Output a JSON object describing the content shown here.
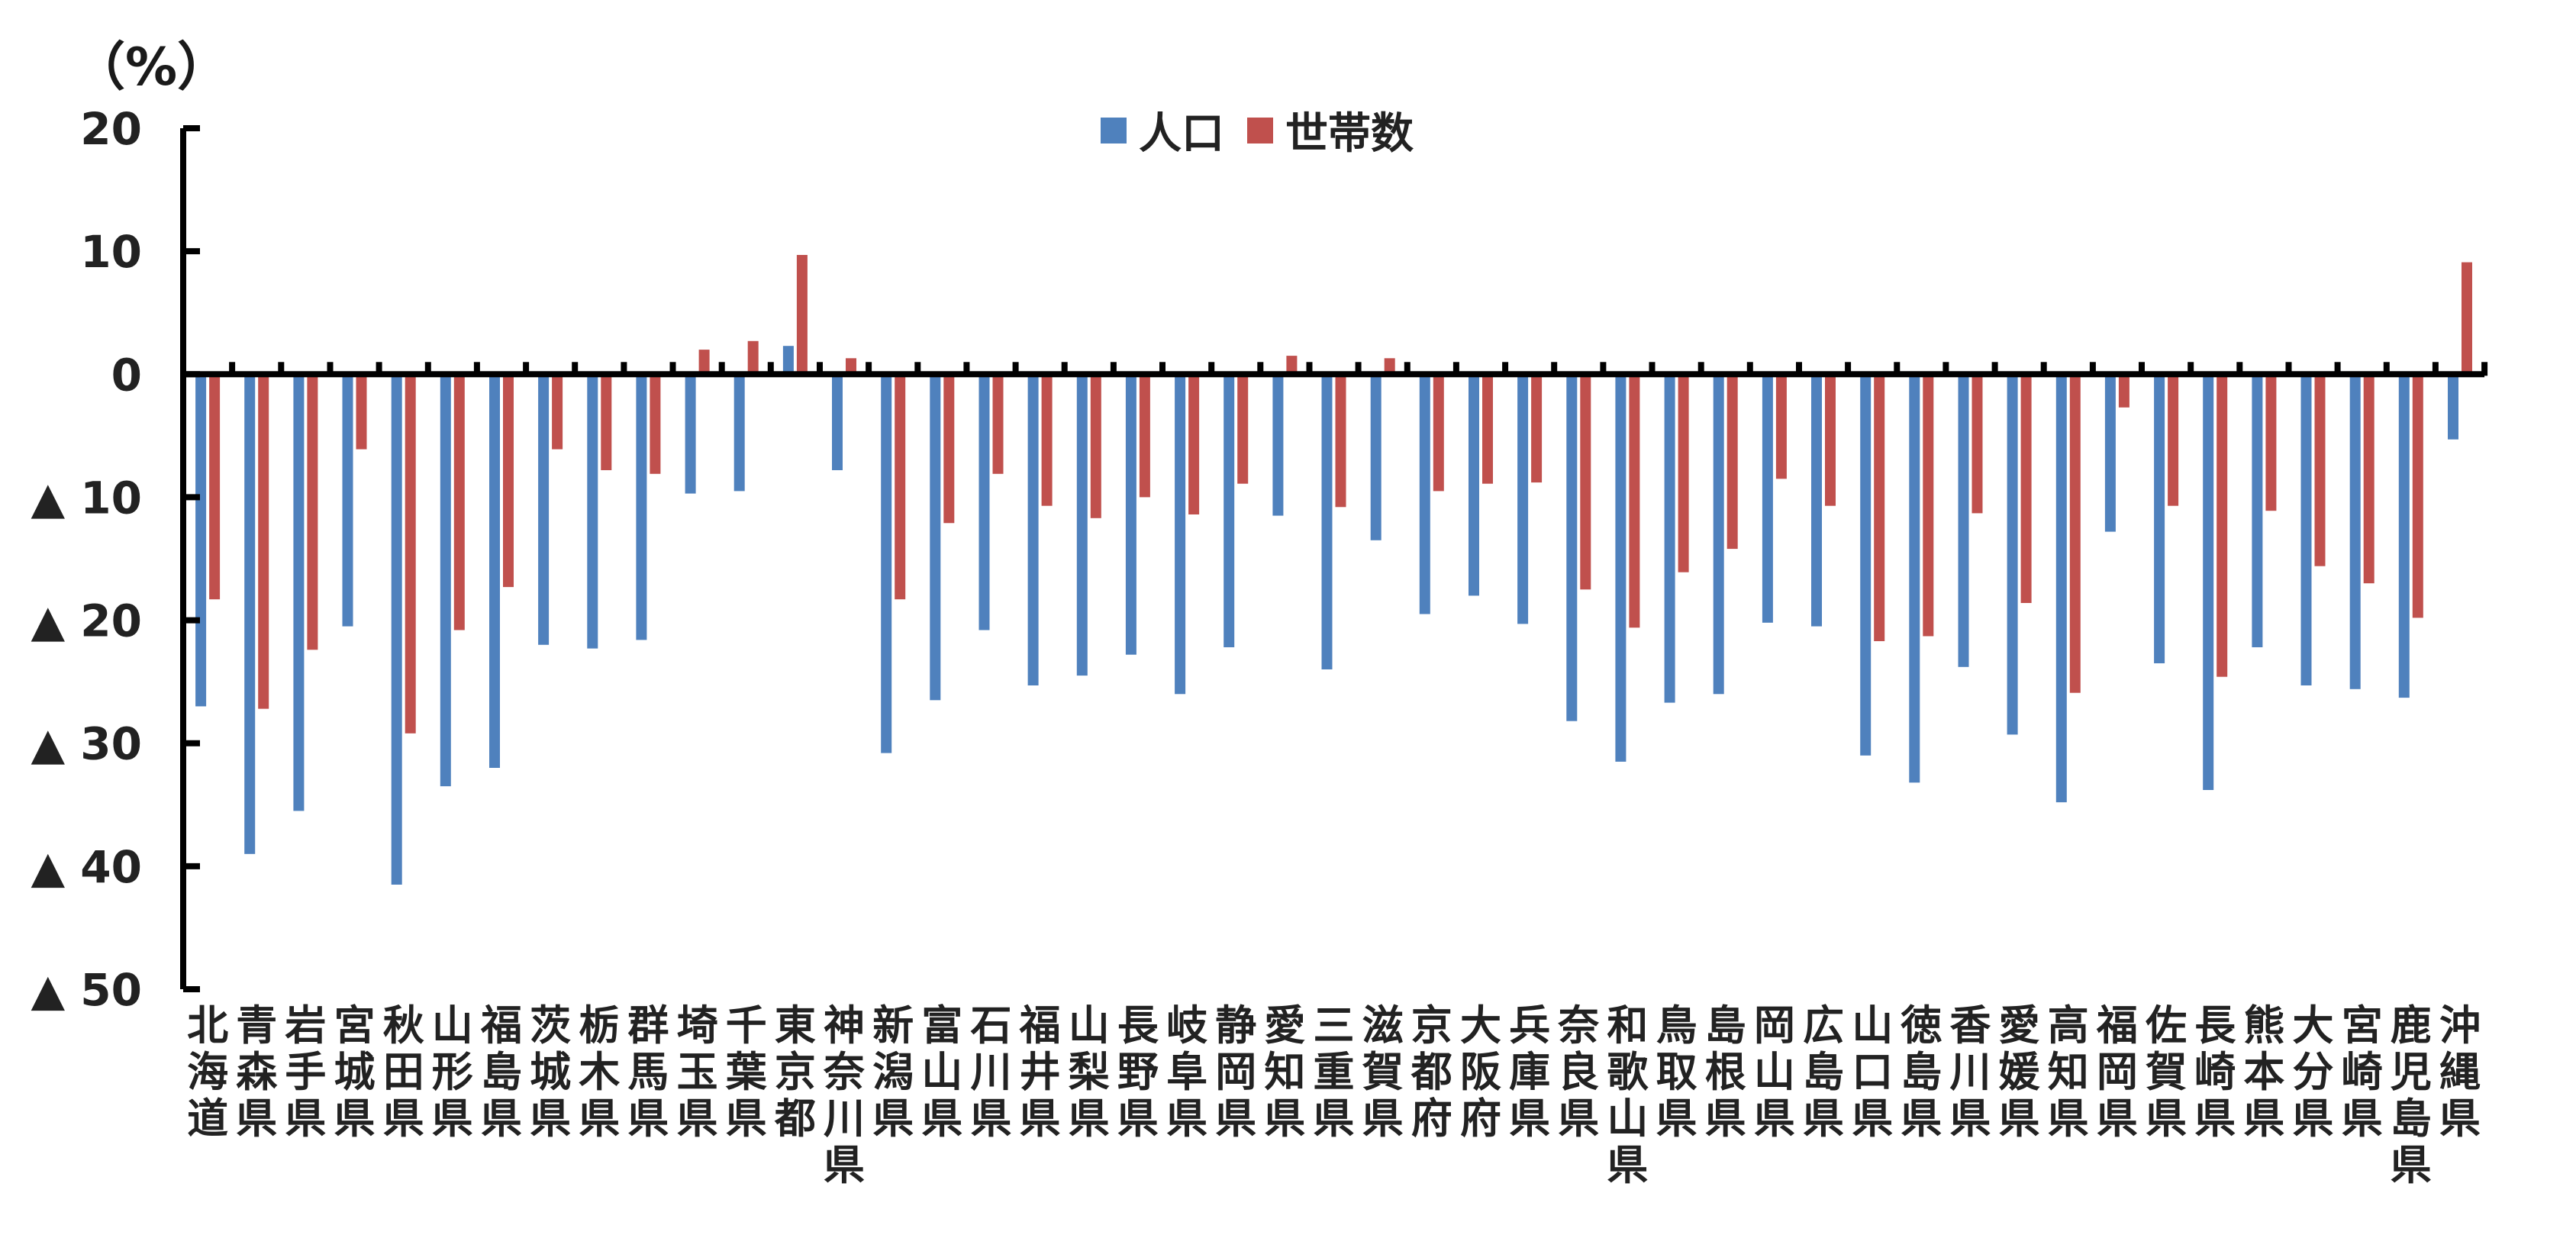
{
  "chart_data": {
    "type": "bar",
    "unit_label": "（%）",
    "ylim": [
      -50,
      20
    ],
    "yticks": [
      {
        "value": 20,
        "label": "20"
      },
      {
        "value": 10,
        "label": "10"
      },
      {
        "value": 0,
        "label": "0"
      },
      {
        "value": -10,
        "label": "▲ 10"
      },
      {
        "value": -20,
        "label": "▲ 20"
      },
      {
        "value": -30,
        "label": "▲ 30"
      },
      {
        "value": -40,
        "label": "▲ 40"
      },
      {
        "value": -50,
        "label": "▲ 50"
      }
    ],
    "legend_position": "top-center",
    "grid": false,
    "categories": [
      "北海道",
      "青森県",
      "岩手県",
      "宮城県",
      "秋田県",
      "山形県",
      "福島県",
      "茨城県",
      "栃木県",
      "群馬県",
      "埼玉県",
      "千葉県",
      "東京都",
      "神奈川県",
      "新潟県",
      "富山県",
      "石川県",
      "福井県",
      "山梨県",
      "長野県",
      "岐阜県",
      "静岡県",
      "愛知県",
      "三重県",
      "滋賀県",
      "京都府",
      "大阪府",
      "兵庫県",
      "奈良県",
      "和歌山県",
      "鳥取県",
      "島根県",
      "岡山県",
      "広島県",
      "山口県",
      "徳島県",
      "香川県",
      "愛媛県",
      "高知県",
      "福岡県",
      "佐賀県",
      "長崎県",
      "熊本県",
      "大分県",
      "宮崎県",
      "鹿児島県",
      "沖縄県"
    ],
    "series": [
      {
        "name": "人口",
        "color": "#4f81bd",
        "values": [
          -27,
          -39,
          -35.5,
          -20.5,
          -41.5,
          -33.5,
          -32,
          -22,
          -22.3,
          -21.6,
          -9.7,
          -9.5,
          2.3,
          -7.8,
          -30.8,
          -26.5,
          -20.8,
          -25.3,
          -24.5,
          -22.8,
          -26,
          -22.2,
          -11.5,
          -24,
          -13.5,
          -19.5,
          -18,
          -20.3,
          -28.2,
          -31.5,
          -26.7,
          -26,
          -20.2,
          -20.5,
          -31,
          -33.2,
          -23.8,
          -29.3,
          -34.8,
          -12.8,
          -23.5,
          -33.8,
          -22.2,
          -25.3,
          -25.6,
          -26.3,
          -5.3
        ]
      },
      {
        "name": "世帯数",
        "color": "#c0504d",
        "values": [
          -18.3,
          -27.2,
          -22.4,
          -6.1,
          -29.2,
          -20.8,
          -17.3,
          -6.1,
          -7.8,
          -8.1,
          2,
          2.7,
          9.7,
          1.3,
          -18.3,
          -12.1,
          -8.1,
          -10.7,
          -11.7,
          -10,
          -11.4,
          -8.9,
          1.5,
          -10.8,
          1.3,
          -9.5,
          -8.9,
          -8.8,
          -17.5,
          -20.6,
          -16.1,
          -14.2,
          -8.5,
          -10.7,
          -21.7,
          -21.3,
          -11.3,
          -18.6,
          -25.9,
          -2.7,
          -10.7,
          -24.6,
          -11.1,
          -15.6,
          -17,
          -19.8,
          9.1
        ]
      }
    ]
  }
}
